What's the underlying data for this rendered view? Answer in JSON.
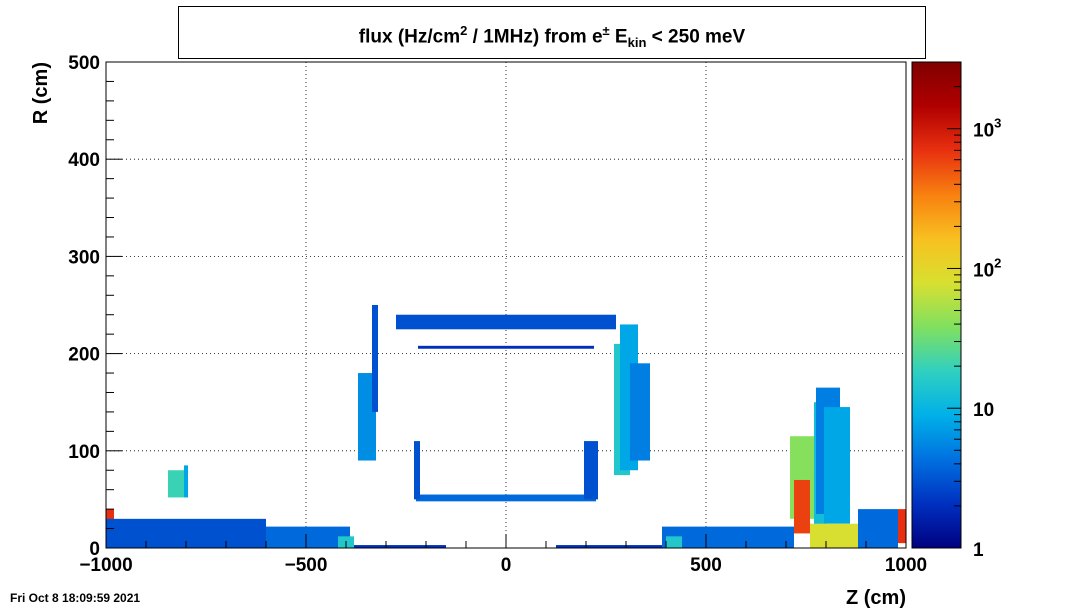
{
  "title_parts": {
    "prefix": "flux (Hz/cm",
    "sup": "2",
    "mid": " / 1MHz) from   e",
    "particle_sup": "±",
    "var": " E",
    "var_sub": "kin",
    "suffix": " < 250 meV"
  },
  "footer": {
    "timestamp": "Fri Oct  8 18:09:59 2021"
  },
  "chart_data": {
    "type": "heatmap",
    "title": "flux (Hz/cm2 / 1MHz) from e± Ekin < 250 meV",
    "xlabel": "Z (cm)",
    "ylabel": "R (cm)",
    "xlim": [
      -1000,
      1000
    ],
    "ylim": [
      0,
      500
    ],
    "x_ticks": [
      -1000,
      -500,
      0,
      500,
      1000
    ],
    "x_tick_labels": [
      "−1000",
      "−500",
      "0",
      "500",
      "1000"
    ],
    "y_ticks": [
      0,
      100,
      200,
      300,
      400,
      500
    ],
    "y_tick_labels": [
      "0",
      "100",
      "200",
      "300",
      "400",
      "500"
    ],
    "grid": true,
    "colorbar": {
      "scale": "log",
      "range": [
        1,
        3000
      ],
      "tick_values": [
        1,
        10,
        100,
        1000
      ],
      "tick_labels": [
        {
          "base": "1",
          "exp": ""
        },
        {
          "base": "10",
          "exp": ""
        },
        {
          "base": "10",
          "exp": "2"
        },
        {
          "base": "10",
          "exp": "3"
        }
      ],
      "palette": [
        "#000080",
        "#0030c0",
        "#0070e0",
        "#00b0e8",
        "#30d0c0",
        "#80e060",
        "#d8e030",
        "#f8c020",
        "#f88010",
        "#e83010",
        "#b00000",
        "#800000"
      ]
    },
    "regions": [
      {
        "z": [
          -1000,
          -980
        ],
        "r": [
          5,
          40
        ],
        "value": 700
      },
      {
        "z": [
          -1000,
          -600
        ],
        "r": [
          0,
          30
        ],
        "value": 3
      },
      {
        "z": [
          -600,
          -390
        ],
        "r": [
          0,
          22
        ],
        "value": 4
      },
      {
        "z": [
          -420,
          -380
        ],
        "r": [
          0,
          12
        ],
        "value": 15
      },
      {
        "z": [
          -380,
          -150
        ],
        "r": [
          0,
          3
        ],
        "value": 2
      },
      {
        "z": [
          -845,
          -805
        ],
        "r": [
          52,
          80
        ],
        "value": 20
      },
      {
        "z": [
          -805,
          -795
        ],
        "r": [
          52,
          85
        ],
        "value": 8
      },
      {
        "z": [
          -370,
          -325
        ],
        "r": [
          90,
          180
        ],
        "value": 6
      },
      {
        "z": [
          -335,
          -320
        ],
        "r": [
          140,
          250
        ],
        "value": 3
      },
      {
        "z": [
          -275,
          275
        ],
        "r": [
          225,
          240
        ],
        "value": 3
      },
      {
        "z": [
          -220,
          220
        ],
        "r": [
          205,
          208
        ],
        "value": 2
      },
      {
        "z": [
          -225,
          225
        ],
        "r": [
          48,
          55
        ],
        "value": 4
      },
      {
        "z": [
          -230,
          -215
        ],
        "r": [
          50,
          110
        ],
        "value": 3
      },
      {
        "z": [
          195,
          230
        ],
        "r": [
          50,
          110
        ],
        "value": 3
      },
      {
        "z": [
          270,
          310
        ],
        "r": [
          75,
          210
        ],
        "value": 15
      },
      {
        "z": [
          285,
          330
        ],
        "r": [
          80,
          230
        ],
        "value": 8
      },
      {
        "z": [
          310,
          360
        ],
        "r": [
          90,
          190
        ],
        "value": 5
      },
      {
        "z": [
          125,
          390
        ],
        "r": [
          0,
          3
        ],
        "value": 2
      },
      {
        "z": [
          390,
          720
        ],
        "r": [
          0,
          22
        ],
        "value": 4
      },
      {
        "z": [
          400,
          440
        ],
        "r": [
          0,
          12
        ],
        "value": 15
      },
      {
        "z": [
          710,
          780
        ],
        "r": [
          30,
          115
        ],
        "value": 40
      },
      {
        "z": [
          720,
          760
        ],
        "r": [
          15,
          70
        ],
        "value": 600
      },
      {
        "z": [
          770,
          800
        ],
        "r": [
          10,
          150
        ],
        "value": 12
      },
      {
        "z": [
          775,
          835
        ],
        "r": [
          35,
          165
        ],
        "value": 5
      },
      {
        "z": [
          795,
          860
        ],
        "r": [
          25,
          145
        ],
        "value": 8
      },
      {
        "z": [
          760,
          880
        ],
        "r": [
          0,
          25
        ],
        "value": 80
      },
      {
        "z": [
          880,
          980
        ],
        "r": [
          0,
          40
        ],
        "value": 4
      },
      {
        "z": [
          980,
          1000
        ],
        "r": [
          5,
          40
        ],
        "value": 700
      }
    ]
  }
}
